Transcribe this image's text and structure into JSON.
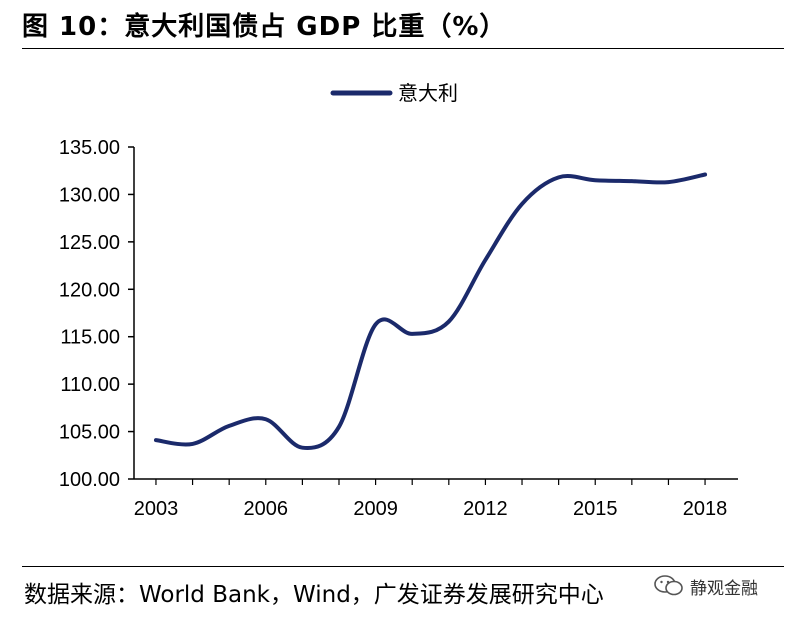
{
  "header": {
    "title": "图 10：意大利国债占 GDP 比重（%）"
  },
  "footer": {
    "source": "数据来源：World Bank，Wind，广发证券发展研究中心"
  },
  "watermark": {
    "text": "静观金融",
    "icon": "wechat-icon"
  },
  "colors": {
    "line": "#1b2a6b",
    "axis": "#000000"
  },
  "chart_data": {
    "type": "line",
    "title": "",
    "xlabel": "",
    "ylabel": "",
    "x_ticks": [
      "2003",
      "2006",
      "2009",
      "2012",
      "2015",
      "2018"
    ],
    "y_ticks": [
      "100.00",
      "105.00",
      "110.00",
      "115.00",
      "120.00",
      "125.00",
      "130.00",
      "135.00"
    ],
    "ylim": [
      100,
      135
    ],
    "xlim": [
      2002.4,
      2018.9
    ],
    "legend": "top-center",
    "grid": false,
    "series": [
      {
        "name": "意大利",
        "x": [
          2003,
          2004,
          2005,
          2006,
          2007,
          2008,
          2009,
          2010,
          2011,
          2012,
          2013,
          2014,
          2015,
          2016,
          2017,
          2018
        ],
        "values": [
          104.1,
          103.7,
          105.6,
          106.3,
          103.3,
          105.5,
          116.3,
          115.3,
          116.6,
          123.1,
          129.0,
          131.8,
          131.5,
          131.4,
          131.3,
          132.1
        ]
      }
    ]
  }
}
